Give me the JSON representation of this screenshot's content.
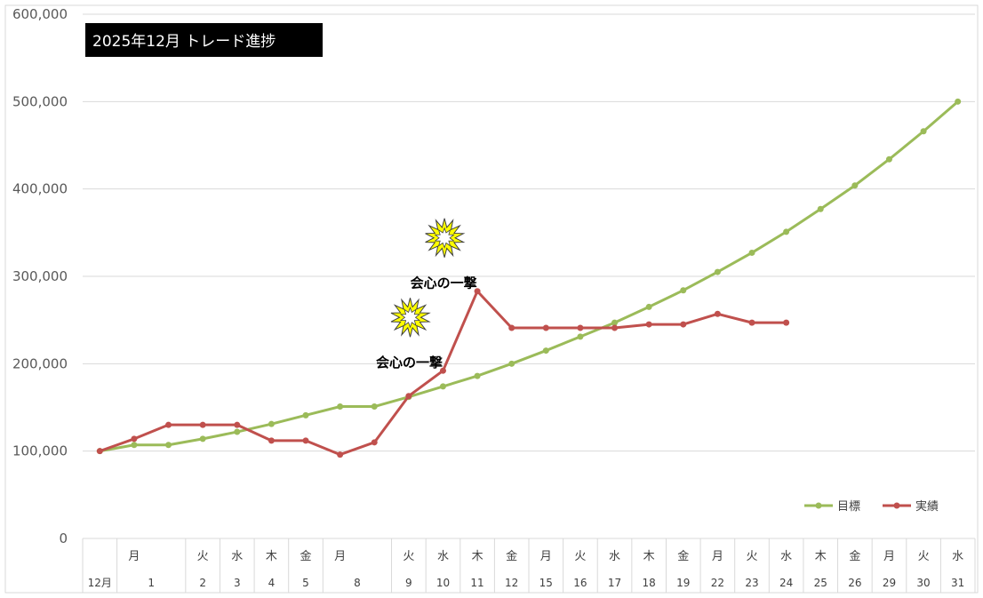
{
  "chart_data": {
    "type": "line",
    "title": "2025年12月  トレード進捗",
    "ylim": [
      0,
      600000
    ],
    "yticks": [
      0,
      100000,
      200000,
      300000,
      400000,
      500000,
      600000
    ],
    "ytick_labels": [
      "0",
      "100,000",
      "200,000",
      "300,000",
      "400,000",
      "500,000",
      "600,000"
    ],
    "grid": true,
    "legend_position": "bottom-right",
    "categories": [
      {
        "weekday": "",
        "day": "12月"
      },
      {
        "weekday": "月",
        "day": "1"
      },
      {
        "weekday": "",
        "day": ""
      },
      {
        "weekday": "火",
        "day": "2"
      },
      {
        "weekday": "水",
        "day": "3"
      },
      {
        "weekday": "木",
        "day": "4"
      },
      {
        "weekday": "金",
        "day": "5"
      },
      {
        "weekday": "月",
        "day": "8"
      },
      {
        "weekday": "",
        "day": ""
      },
      {
        "weekday": "火",
        "day": "9"
      },
      {
        "weekday": "水",
        "day": "10"
      },
      {
        "weekday": "木",
        "day": "11"
      },
      {
        "weekday": "金",
        "day": "12"
      },
      {
        "weekday": "月",
        "day": "15"
      },
      {
        "weekday": "火",
        "day": "16"
      },
      {
        "weekday": "水",
        "day": "17"
      },
      {
        "weekday": "木",
        "day": "18"
      },
      {
        "weekday": "金",
        "day": "19"
      },
      {
        "weekday": "月",
        "day": "22"
      },
      {
        "weekday": "火",
        "day": "23"
      },
      {
        "weekday": "水",
        "day": "24"
      },
      {
        "weekday": "木",
        "day": "25"
      },
      {
        "weekday": "金",
        "day": "26"
      },
      {
        "weekday": "月",
        "day": "29"
      },
      {
        "weekday": "火",
        "day": "30"
      },
      {
        "weekday": "水",
        "day": "31"
      }
    ],
    "merged_cells": [
      [
        1,
        2
      ],
      [
        7,
        8
      ]
    ],
    "series": [
      {
        "name": "目標",
        "color": "#9bbb59",
        "values": [
          100000,
          107000,
          107000,
          114000,
          122000,
          131000,
          141000,
          151000,
          151000,
          162000,
          174000,
          186000,
          200000,
          215000,
          231000,
          247000,
          265000,
          284000,
          305000,
          327000,
          351000,
          377000,
          404000,
          434000,
          466000,
          500000
        ]
      },
      {
        "name": "実績",
        "color": "#c0504d",
        "values": [
          100000,
          114000,
          130000,
          130000,
          130000,
          112000,
          112000,
          96000,
          110000,
          163000,
          192000,
          283000,
          241000,
          241000,
          241000,
          241000,
          245000,
          245000,
          257000,
          247000,
          247000,
          null,
          null,
          null,
          null,
          null
        ]
      }
    ],
    "annotations": [
      {
        "text": "会心の一撃",
        "category_index": 10
      },
      {
        "text": "会心の一撃",
        "category_index": 11
      }
    ]
  },
  "colors": {
    "title_background": "#000000",
    "title_text": "#ffffff",
    "burst_fill": "#ffff00"
  }
}
